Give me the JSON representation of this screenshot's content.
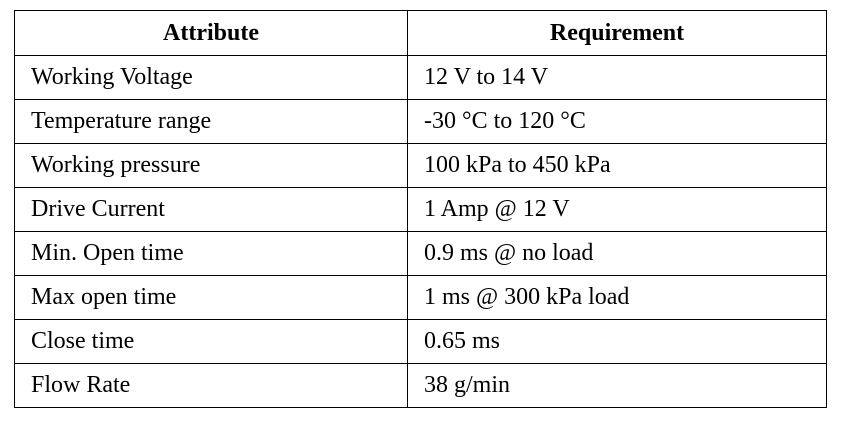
{
  "table": {
    "headers": [
      "Attribute",
      "Requirement"
    ],
    "rows": [
      [
        "Working Voltage",
        "12 V to 14 V"
      ],
      [
        "Temperature range",
        "-30 °C to 120 °C"
      ],
      [
        "Working pressure",
        "100 kPa to 450 kPa"
      ],
      [
        "Drive Current",
        "1 Amp @ 12 V"
      ],
      [
        "Min. Open time",
        "0.9 ms @ no load"
      ],
      [
        "Max open time",
        "1 ms @ 300 kPa load"
      ],
      [
        "Close time",
        "0.65 ms"
      ],
      [
        "Flow Rate",
        "38 g/min"
      ]
    ]
  }
}
